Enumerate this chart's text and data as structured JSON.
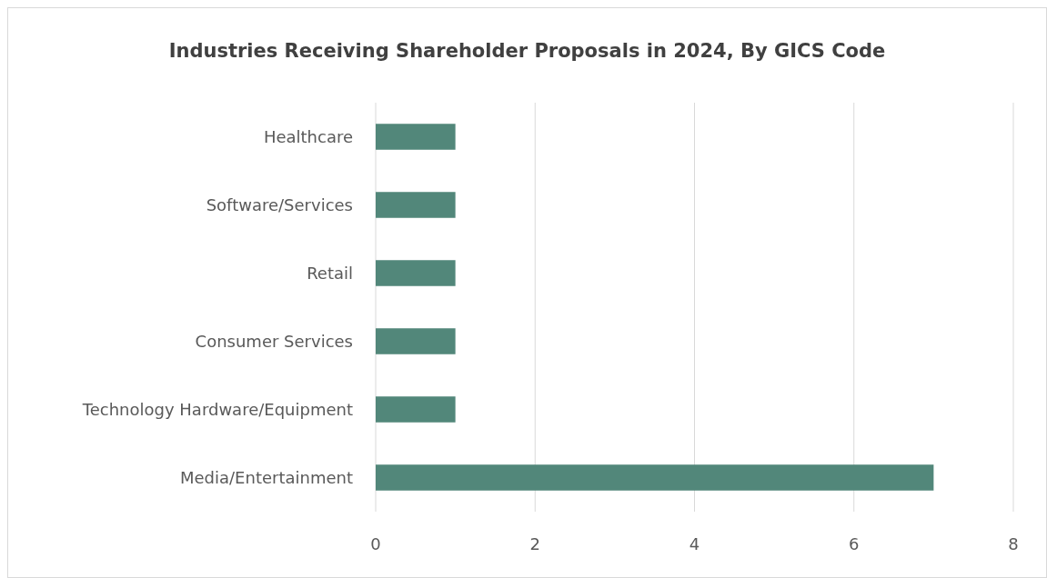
{
  "chart_data": {
    "type": "bar",
    "orientation": "horizontal",
    "title": "Industries Receiving Shareholder Proposals in 2024, By GICS Code",
    "categories": [
      "Healthcare",
      "Software/Services",
      "Retail",
      "Consumer Services",
      "Technology Hardware/Equipment",
      "Media/Entertainment"
    ],
    "values": [
      1,
      1,
      1,
      1,
      1,
      7
    ],
    "color": "#52877a",
    "xlim": [
      0,
      8
    ],
    "xticks": [
      0,
      2,
      4,
      6,
      8
    ],
    "grid": "x"
  }
}
